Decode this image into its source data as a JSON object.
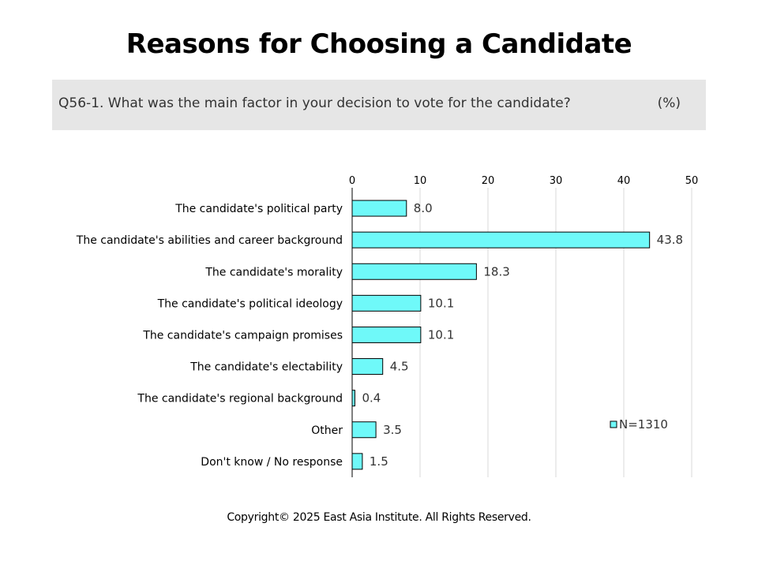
{
  "header": {
    "title": "Reasons for Choosing a Candidate",
    "question": "Q56-1. What was the main factor in your decision to vote for the candidate?",
    "unit": "(%)"
  },
  "footer": {
    "copyright": "Copyright© 2025 East Asia Institute. All Rights Reserved."
  },
  "colors": {
    "bar_fill": "#6ff9f9",
    "bar_stroke": "#000000",
    "grid": "#d9d9d9"
  },
  "chart_data": {
    "type": "bar",
    "orientation": "horizontal",
    "categories": [
      "The candidate's political party",
      "The candidate's abilities and career background",
      "The candidate's morality",
      "The candidate's political ideology",
      "The candidate's campaign promises",
      "The candidate's electability",
      "The candidate's regional background",
      "Other",
      "Don't know / No response"
    ],
    "series": [
      {
        "name": "N=1310",
        "values": [
          8.0,
          43.8,
          18.3,
          10.1,
          10.1,
          4.5,
          0.4,
          3.5,
          1.5
        ],
        "labels": [
          "8.0",
          "43.8",
          "18.3",
          "10.1",
          "10.1",
          "4.5",
          "0.4",
          "3.5",
          "1.5"
        ]
      }
    ],
    "xlim": [
      0,
      50
    ],
    "xticks": [
      "0",
      "10",
      "20",
      "30",
      "40",
      "50"
    ],
    "grid": true,
    "legend_position": "bottom-right",
    "xaxis_position": "top"
  }
}
